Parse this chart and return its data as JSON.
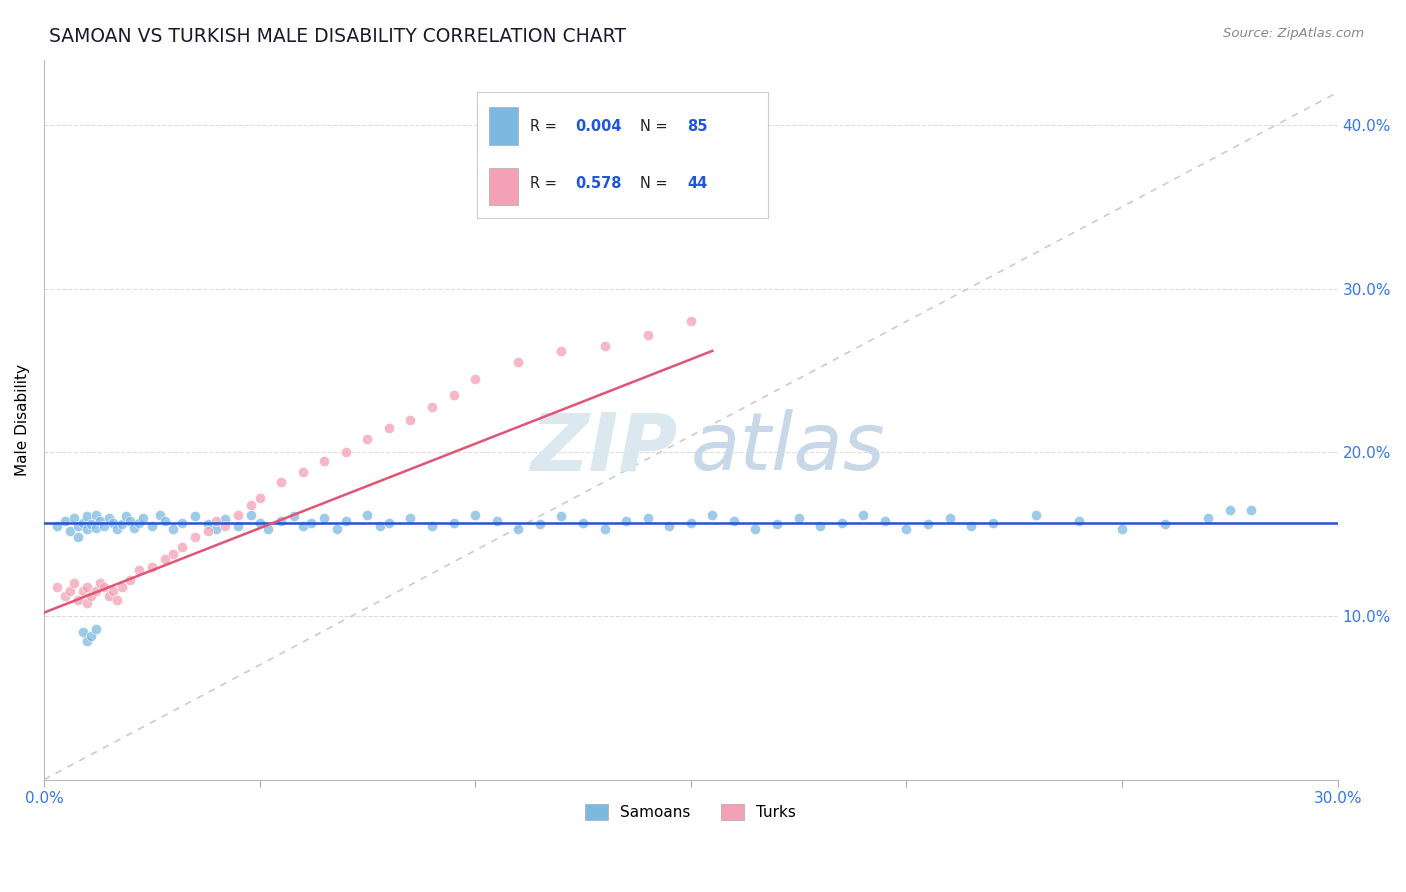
{
  "title": "SAMOAN VS TURKISH MALE DISABILITY CORRELATION CHART",
  "source": "Source: ZipAtlas.com",
  "xlim": [
    0.0,
    0.3
  ],
  "ylim": [
    0.0,
    0.44
  ],
  "ylabel": "Male Disability",
  "samoans_label": "Samoans",
  "turks_label": "Turks",
  "samoan_color": "#7cb9e0",
  "turk_color": "#f4a0b5",
  "samoan_line_color": "#2255cc",
  "turk_line_color": "#e05575",
  "diag_color": "#cccccc",
  "legend_r_color": "#2255dd",
  "legend_n_color": "#2255dd",
  "samoan_r": "0.004",
  "samoan_n": "85",
  "turk_r": "0.578",
  "turk_n": "44",
  "ytick_color": "#3377ee",
  "xtick_color": "#3377ee",
  "grid_color": "#dddddd",
  "samoans_x": [
    0.003,
    0.005,
    0.006,
    0.007,
    0.008,
    0.009,
    0.01,
    0.01,
    0.011,
    0.012,
    0.012,
    0.013,
    0.014,
    0.015,
    0.016,
    0.017,
    0.018,
    0.019,
    0.02,
    0.021,
    0.022,
    0.023,
    0.025,
    0.027,
    0.028,
    0.03,
    0.032,
    0.035,
    0.038,
    0.04,
    0.042,
    0.045,
    0.048,
    0.05,
    0.052,
    0.055,
    0.058,
    0.06,
    0.062,
    0.065,
    0.068,
    0.07,
    0.075,
    0.078,
    0.08,
    0.085,
    0.09,
    0.095,
    0.1,
    0.105,
    0.11,
    0.115,
    0.12,
    0.125,
    0.13,
    0.135,
    0.14,
    0.145,
    0.15,
    0.155,
    0.16,
    0.165,
    0.17,
    0.175,
    0.18,
    0.185,
    0.19,
    0.195,
    0.2,
    0.205,
    0.21,
    0.215,
    0.22,
    0.23,
    0.24,
    0.25,
    0.26,
    0.27,
    0.275,
    0.28,
    0.008,
    0.009,
    0.01,
    0.011,
    0.012
  ],
  "samoans_y": [
    0.155,
    0.158,
    0.152,
    0.16,
    0.155,
    0.157,
    0.153,
    0.161,
    0.156,
    0.154,
    0.162,
    0.158,
    0.155,
    0.16,
    0.157,
    0.153,
    0.156,
    0.161,
    0.158,
    0.154,
    0.157,
    0.16,
    0.155,
    0.162,
    0.158,
    0.153,
    0.157,
    0.161,
    0.156,
    0.153,
    0.159,
    0.155,
    0.162,
    0.157,
    0.153,
    0.158,
    0.161,
    0.155,
    0.157,
    0.16,
    0.153,
    0.158,
    0.162,
    0.155,
    0.157,
    0.16,
    0.155,
    0.157,
    0.162,
    0.158,
    0.153,
    0.156,
    0.161,
    0.157,
    0.153,
    0.158,
    0.16,
    0.155,
    0.157,
    0.162,
    0.158,
    0.153,
    0.156,
    0.16,
    0.155,
    0.157,
    0.162,
    0.158,
    0.153,
    0.156,
    0.16,
    0.155,
    0.157,
    0.162,
    0.158,
    0.153,
    0.156,
    0.16,
    0.165,
    0.165,
    0.148,
    0.09,
    0.085,
    0.088,
    0.092
  ],
  "turks_x": [
    0.003,
    0.005,
    0.006,
    0.007,
    0.008,
    0.009,
    0.01,
    0.01,
    0.011,
    0.012,
    0.013,
    0.014,
    0.015,
    0.016,
    0.017,
    0.018,
    0.02,
    0.022,
    0.025,
    0.028,
    0.03,
    0.032,
    0.035,
    0.038,
    0.04,
    0.042,
    0.045,
    0.048,
    0.05,
    0.055,
    0.06,
    0.065,
    0.07,
    0.075,
    0.08,
    0.085,
    0.09,
    0.095,
    0.1,
    0.11,
    0.12,
    0.13,
    0.14,
    0.15
  ],
  "turks_y": [
    0.118,
    0.112,
    0.115,
    0.12,
    0.11,
    0.115,
    0.118,
    0.108,
    0.112,
    0.115,
    0.12,
    0.118,
    0.112,
    0.115,
    0.11,
    0.118,
    0.122,
    0.128,
    0.13,
    0.135,
    0.138,
    0.142,
    0.148,
    0.152,
    0.158,
    0.155,
    0.162,
    0.168,
    0.172,
    0.182,
    0.188,
    0.195,
    0.2,
    0.208,
    0.215,
    0.22,
    0.228,
    0.235,
    0.245,
    0.255,
    0.262,
    0.265,
    0.272,
    0.28
  ],
  "samoan_trend_y0": 0.157,
  "turk_trend_x0": 0.0,
  "turk_trend_y0": 0.102,
  "turk_trend_x1": 0.155,
  "turk_trend_y1": 0.262
}
